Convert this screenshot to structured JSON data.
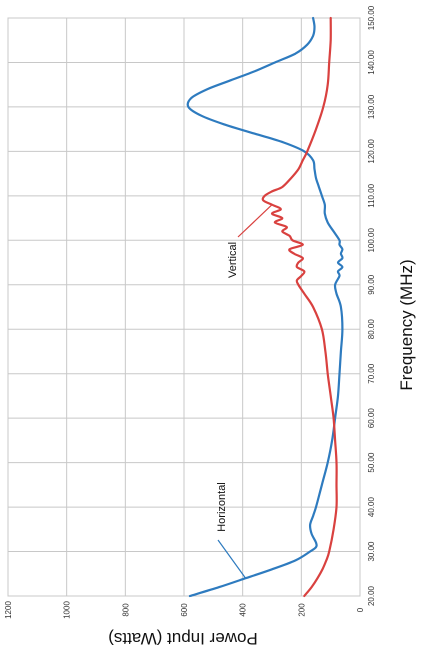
{
  "chart_data": {
    "type": "line",
    "title": "",
    "xlabel": "Frequency (MHz)",
    "ylabel": "Power Input (Watts)",
    "xlim": [
      20,
      150
    ],
    "ylim": [
      0,
      1200
    ],
    "x_ticks": [
      "20.00",
      "30.00",
      "40.00",
      "50.00",
      "60.00",
      "70.00",
      "80.00",
      "90.00",
      "100.00",
      "110.00",
      "120.00",
      "130.00",
      "140.00",
      "150.00"
    ],
    "y_ticks": [
      "0",
      "200",
      "400",
      "600",
      "800",
      "1000",
      "1200"
    ],
    "grid": true,
    "series": [
      {
        "name": "Horizontal",
        "color": "#2e7bbf",
        "points": [
          [
            20,
            580
          ],
          [
            22,
            480
          ],
          [
            24,
            390
          ],
          [
            26,
            300
          ],
          [
            28,
            220
          ],
          [
            30,
            170
          ],
          [
            31,
            150
          ],
          [
            32,
            150
          ],
          [
            34,
            165
          ],
          [
            36,
            170
          ],
          [
            38,
            160
          ],
          [
            40,
            150
          ],
          [
            45,
            130
          ],
          [
            50,
            110
          ],
          [
            55,
            95
          ],
          [
            60,
            85
          ],
          [
            65,
            75
          ],
          [
            70,
            70
          ],
          [
            75,
            65
          ],
          [
            80,
            60
          ],
          [
            85,
            65
          ],
          [
            88,
            80
          ],
          [
            90,
            85
          ],
          [
            92,
            70
          ],
          [
            93,
            75
          ],
          [
            94,
            60
          ],
          [
            95,
            75
          ],
          [
            96,
            60
          ],
          [
            97,
            65
          ],
          [
            98,
            60
          ],
          [
            99,
            70
          ],
          [
            100,
            70
          ],
          [
            102,
            90
          ],
          [
            104,
            110
          ],
          [
            106,
            120
          ],
          [
            108,
            120
          ],
          [
            110,
            130
          ],
          [
            112,
            140
          ],
          [
            114,
            150
          ],
          [
            116,
            155
          ],
          [
            118,
            160
          ],
          [
            120,
            190
          ],
          [
            122,
            260
          ],
          [
            124,
            360
          ],
          [
            126,
            460
          ],
          [
            128,
            540
          ],
          [
            130,
            585
          ],
          [
            132,
            575
          ],
          [
            134,
            520
          ],
          [
            136,
            440
          ],
          [
            138,
            360
          ],
          [
            140,
            290
          ],
          [
            142,
            220
          ],
          [
            144,
            180
          ],
          [
            146,
            160
          ],
          [
            148,
            155
          ],
          [
            150,
            160
          ]
        ]
      },
      {
        "name": "Vertical",
        "color": "#d9413f",
        "points": [
          [
            20,
            190
          ],
          [
            22,
            165
          ],
          [
            24,
            145
          ],
          [
            26,
            128
          ],
          [
            28,
            115
          ],
          [
            30,
            105
          ],
          [
            35,
            90
          ],
          [
            40,
            80
          ],
          [
            45,
            80
          ],
          [
            50,
            80
          ],
          [
            55,
            85
          ],
          [
            60,
            90
          ],
          [
            65,
            100
          ],
          [
            70,
            110
          ],
          [
            75,
            118
          ],
          [
            80,
            130
          ],
          [
            85,
            160
          ],
          [
            88,
            190
          ],
          [
            90,
            210
          ],
          [
            91,
            215
          ],
          [
            92,
            200
          ],
          [
            93,
            190
          ],
          [
            94,
            215
          ],
          [
            95,
            210
          ],
          [
            96,
            195
          ],
          [
            97,
            225
          ],
          [
            98,
            240
          ],
          [
            99,
            195
          ],
          [
            100,
            230
          ],
          [
            101,
            240
          ],
          [
            102,
            265
          ],
          [
            103,
            250
          ],
          [
            104,
            290
          ],
          [
            105,
            265
          ],
          [
            106,
            300
          ],
          [
            107,
            270
          ],
          [
            108,
            300
          ],
          [
            109,
            330
          ],
          [
            110,
            325
          ],
          [
            111,
            300
          ],
          [
            112,
            265
          ],
          [
            114,
            235
          ],
          [
            116,
            210
          ],
          [
            118,
            195
          ],
          [
            120,
            180
          ],
          [
            125,
            150
          ],
          [
            130,
            125
          ],
          [
            135,
            110
          ],
          [
            140,
            105
          ],
          [
            145,
            100
          ],
          [
            150,
            100
          ]
        ]
      }
    ],
    "annotations": [
      {
        "text": "Horizontal",
        "series": "Horizontal",
        "x": 24,
        "y": 390
      },
      {
        "text": "Vertical",
        "series": "Vertical",
        "x": 108,
        "y": 300
      }
    ]
  }
}
